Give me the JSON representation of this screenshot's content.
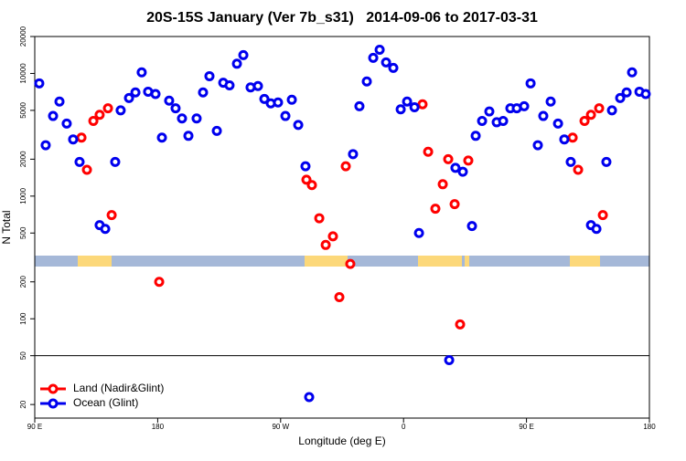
{
  "chart_data": {
    "type": "scatter",
    "title": "20S-15S January (Ver 7b_s31)   2014-09-06 to 2017-03-31",
    "xlabel": "Longitude (deg E)",
    "ylabel": "N Total",
    "xlim": [
      90,
      540
    ],
    "xticks": [
      {
        "value": 90,
        "label": "90 E"
      },
      180,
      {
        "value": 270,
        "label": "90 W"
      },
      {
        "value": 360,
        "label": "0"
      },
      {
        "value": 450,
        "label": "90 E"
      },
      {
        "value": 540,
        "label": "180"
      }
    ],
    "ylim": [
      15.5,
      20000
    ],
    "ylog": true,
    "yticks": [
      20,
      50,
      100,
      200,
      500,
      1000,
      2000,
      5000,
      10000,
      20000
    ],
    "hlines": [
      50
    ],
    "legend": "lower left",
    "series": [
      {
        "name": "Land (Nadir&Glint)",
        "color": "#ff0000",
        "x": [
          124.2,
          128.2,
          132.9,
          137.5,
          143.6,
          146.3,
          181.1,
          288.9,
          292.9,
          298.3,
          303,
          308.3,
          313,
          317.7,
          321,
          373.9,
          378,
          383.3,
          388.7,
          392.7,
          397.4,
          401.4,
          407.4,
          483.8,
          487.8,
          492.5,
          497.2,
          503.2,
          505.9
        ],
        "values": [
          3000,
          1640,
          4100,
          4600,
          5200,
          700,
          200,
          1360,
          1230,
          660,
          400,
          470,
          150,
          1750,
          280,
          5600,
          2300,
          790,
          1250,
          2000,
          860,
          90,
          1950,
          3000,
          1640,
          4100,
          4600,
          5200,
          700
        ]
      },
      {
        "name": "Ocean (Glint)",
        "color": "#0000ee",
        "x": [
          93.3,
          98,
          103.4,
          108.1,
          113.4,
          118.1,
          122.8,
          137.5,
          141.6,
          148.9,
          152.9,
          159,
          163.7,
          168.3,
          173,
          178.4,
          183.1,
          188.4,
          193.1,
          197.8,
          202.5,
          208.5,
          213.2,
          217.9,
          223.3,
          228,
          232.6,
          238,
          242.7,
          248,
          253.4,
          258.1,
          262.8,
          268.1,
          273.5,
          278.2,
          282.9,
          288.2,
          290.9,
          323,
          327.7,
          333.1,
          337.8,
          342.5,
          347.2,
          352.5,
          357.9,
          362.6,
          368,
          371.3,
          393.4,
          398,
          403.4,
          410.1,
          412.8,
          417.5,
          422.8,
          428.2,
          432.9,
          438.2,
          442.9,
          448.3,
          453,
          458.3,
          462.3,
          467.7,
          473.1,
          477.7,
          482.4,
          497.2,
          501.2,
          508.5,
          512.6,
          518.6,
          523.3,
          527.3,
          532.7,
          537.3
        ],
        "values": [
          8300,
          2600,
          4500,
          5900,
          3900,
          2900,
          1900,
          580,
          540,
          1900,
          5000,
          6300,
          7000,
          10200,
          7100,
          6800,
          3000,
          6000,
          5200,
          4300,
          3100,
          4300,
          7000,
          9500,
          3400,
          8400,
          8000,
          12000,
          14100,
          7700,
          7900,
          6200,
          5700,
          5800,
          4500,
          6100,
          3800,
          1750,
          23,
          2200,
          5400,
          8600,
          13400,
          15600,
          12300,
          11100,
          5100,
          5900,
          5300,
          500,
          46,
          1700,
          1580,
          570,
          3100,
          4100,
          4900,
          4000,
          4100,
          5200,
          5200,
          5400,
          8300,
          2600,
          4500,
          5900,
          3900,
          2900,
          1900,
          580,
          540,
          1900,
          5000,
          6300,
          7000,
          10200,
          7100,
          6800
        ]
      }
    ]
  }
}
